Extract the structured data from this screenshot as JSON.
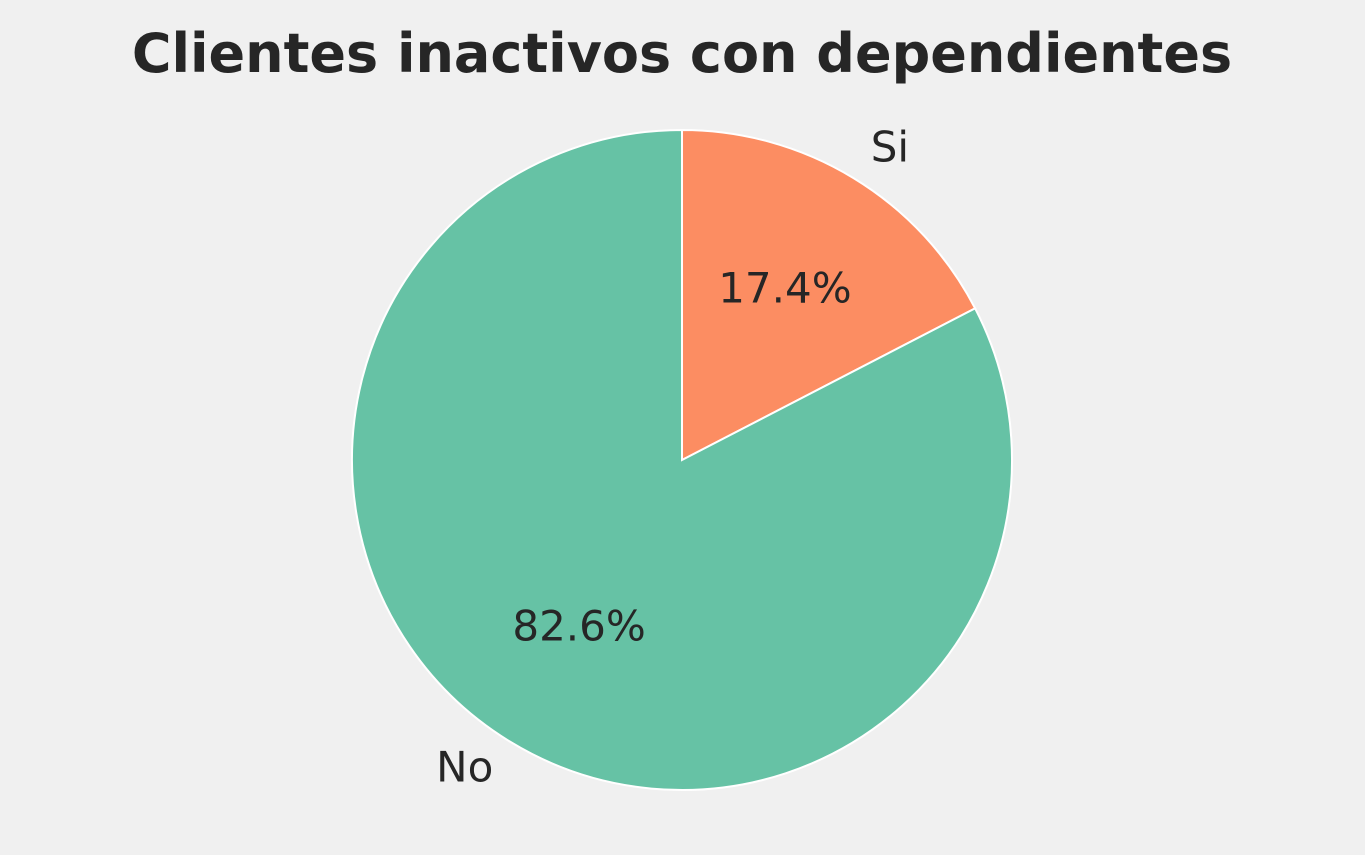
{
  "chart_data": {
    "type": "pie",
    "title": "Clientes inactivos con dependientes",
    "categories": [
      "Si",
      "No"
    ],
    "values": [
      17.4,
      82.6
    ],
    "value_labels": [
      "17.4%",
      "82.6%"
    ],
    "colors": [
      "#fc8d62",
      "#66c2a5"
    ],
    "start": "top, clockwise"
  }
}
